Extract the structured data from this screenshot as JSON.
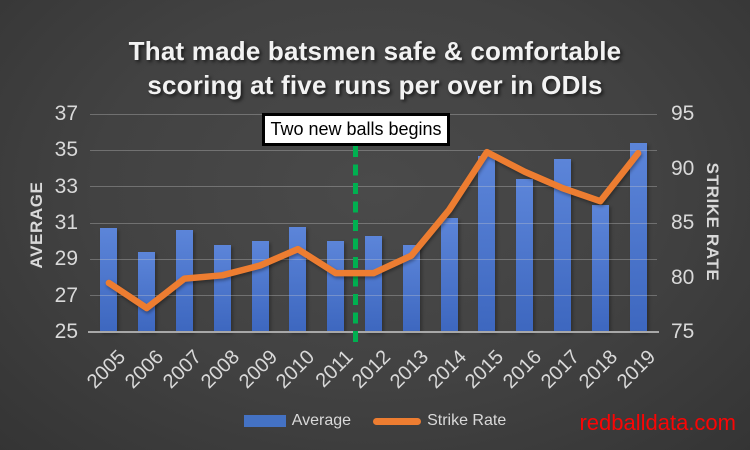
{
  "title": {
    "line1": "That made batsmen safe & comfortable",
    "line2": "scoring at five runs per over in ODIs"
  },
  "legend": {
    "items": [
      {
        "label": "Average",
        "swatch": "bar-swatch",
        "color": "#4472C4"
      },
      {
        "label": "Strike Rate",
        "swatch": "line-swatch",
        "color": "#ED7D31"
      }
    ]
  },
  "watermark": {
    "text": "redballdata.com",
    "color": "#fa0505"
  },
  "colors": {
    "bar_legend": "#4472C4",
    "bar_top": "#5c85d9",
    "bar_bottom": "#3d67bf",
    "line": "#ED7D31",
    "dashed_line": "#00B050",
    "text_light": "#d9d9d9",
    "title_text": "#f2f2f2",
    "annotation_bg": "#ffffff",
    "annotation_border": "#000000",
    "axis_line": "#a8a8a8",
    "gridline": "#6a6a6a",
    "watermark": "#fa0505"
  },
  "chart_data": {
    "type": "combo",
    "categories": [
      "2005",
      "2006",
      "2007",
      "2008",
      "2009",
      "2010",
      "2011",
      "2012",
      "2013",
      "2014",
      "2015",
      "2016",
      "2017",
      "2018",
      "2019"
    ],
    "series": [
      {
        "name": "Average",
        "type": "bar",
        "axis": "left",
        "color": "#4472C4",
        "values": [
          30.7,
          29.4,
          30.6,
          29.8,
          30.0,
          30.8,
          30.0,
          30.3,
          29.8,
          31.3,
          34.7,
          33.4,
          34.5,
          32.0,
          35.4
        ]
      },
      {
        "name": "Strike Rate",
        "type": "line",
        "axis": "right",
        "color": "#ED7D31",
        "values": [
          79.5,
          77.2,
          79.9,
          80.2,
          81.1,
          82.6,
          80.4,
          80.4,
          82.0,
          86.2,
          91.5,
          89.7,
          88.2,
          87.0,
          91.4
        ]
      }
    ],
    "left_axis": {
      "title": "AVERAGE",
      "min": 25,
      "max": 37,
      "ticks": [
        25,
        27,
        29,
        31,
        33,
        35,
        37
      ]
    },
    "right_axis": {
      "title": "STRIKE RATE",
      "min": 75,
      "max": 95,
      "ticks": [
        75,
        80,
        85,
        90,
        95
      ]
    },
    "grid": "horizontal",
    "legend_position": "bottom",
    "annotation": {
      "text": "Two new balls begins",
      "line_between": [
        "2011",
        "2012"
      ],
      "line_color": "#00B050"
    }
  }
}
